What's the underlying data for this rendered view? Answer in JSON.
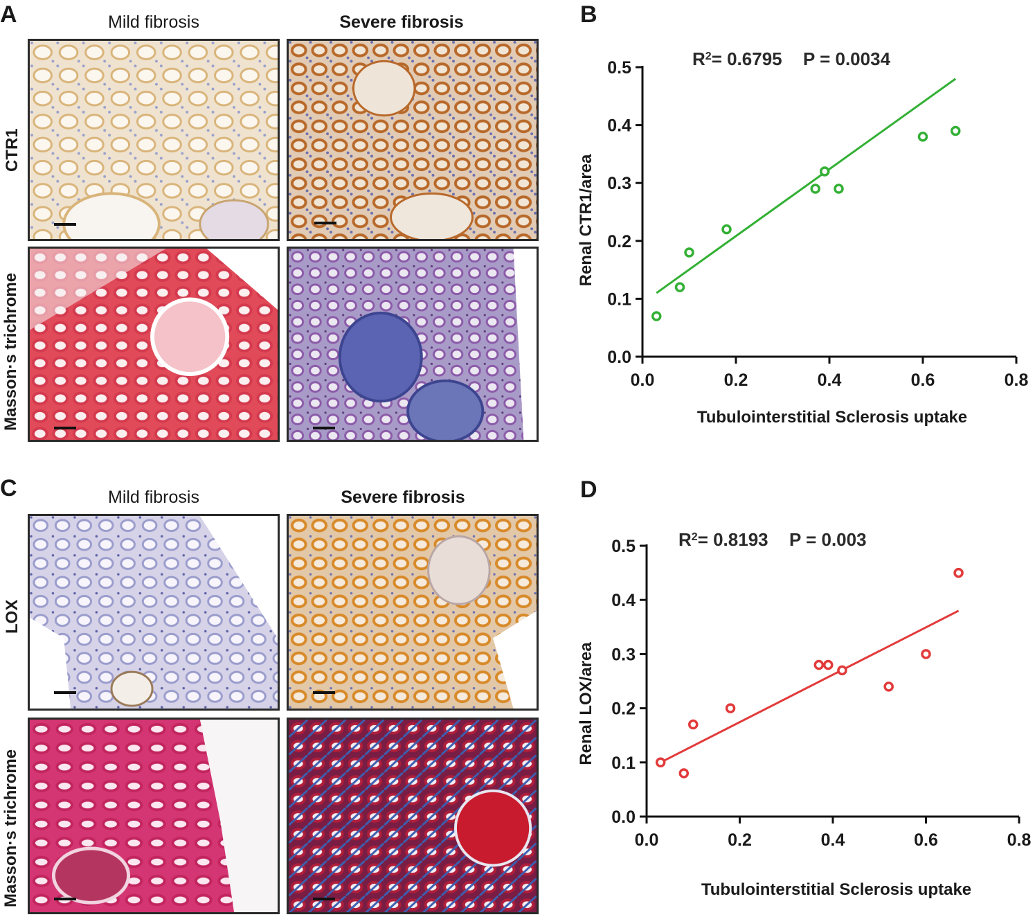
{
  "panels": {
    "A": {
      "letter": "A",
      "col_left": "Mild fibrosis",
      "col_right": "Severe fibrosis",
      "row_top": "CTR1",
      "row_bottom": "Masson·s trichrome"
    },
    "C": {
      "letter": "C",
      "col_left": "Mild fibrosis",
      "col_right": "Severe fibrosis",
      "row_top": "LOX",
      "row_bottom": "Masson·s trichrome"
    },
    "B": {
      "letter": "B"
    },
    "D": {
      "letter": "D"
    }
  },
  "colors": {
    "green_series": "#33b035",
    "red_series": "#e23a3a",
    "ihc_brown": "#c98a3a",
    "ihc_blue": "#8a8fc6",
    "masson_red": "#d6364f",
    "masson_blue": "#4b55a8"
  },
  "chart_data": [
    {
      "panel": "B",
      "type": "scatter",
      "stats": "R² = 0.6795   P = 0.0034",
      "stats_r2": "= 0.6795",
      "stats_p": "P = 0.0034",
      "xlabel": "Tubulointerstitial Sclerosis uptake",
      "ylabel": "Renal CTR1/area",
      "xlim": [
        0.0,
        0.8
      ],
      "ylim": [
        0.0,
        0.5
      ],
      "xticks": [
        "0.0",
        "0.2",
        "0.4",
        "0.6",
        "0.8"
      ],
      "yticks": [
        "0.0",
        "0.1",
        "0.2",
        "0.3",
        "0.4",
        "0.5"
      ],
      "color": "#33b035",
      "points": [
        [
          0.03,
          0.07
        ],
        [
          0.08,
          0.12
        ],
        [
          0.1,
          0.18
        ],
        [
          0.18,
          0.22
        ],
        [
          0.37,
          0.29
        ],
        [
          0.39,
          0.32
        ],
        [
          0.42,
          0.29
        ],
        [
          0.6,
          0.38
        ],
        [
          0.67,
          0.39
        ]
      ],
      "fit_line": [
        [
          0.03,
          0.11
        ],
        [
          0.67,
          0.48
        ]
      ]
    },
    {
      "panel": "D",
      "type": "scatter",
      "stats": "R² = 0.8193   P = 0.003",
      "stats_r2": "= 0.8193",
      "stats_p": "P = 0.003",
      "xlabel": "Tubulointerstitial Sclerosis uptake",
      "ylabel": "Renal LOX/area",
      "xlim": [
        0.0,
        0.8
      ],
      "ylim": [
        0.0,
        0.5
      ],
      "xticks": [
        "0.0",
        "0.2",
        "0.4",
        "0.6",
        "0.8"
      ],
      "yticks": [
        "0.0",
        "0.1",
        "0.2",
        "0.3",
        "0.4",
        "0.5"
      ],
      "color": "#e23a3a",
      "points": [
        [
          0.03,
          0.1
        ],
        [
          0.08,
          0.08
        ],
        [
          0.1,
          0.17
        ],
        [
          0.18,
          0.2
        ],
        [
          0.37,
          0.28
        ],
        [
          0.39,
          0.28
        ],
        [
          0.42,
          0.27
        ],
        [
          0.52,
          0.24
        ],
        [
          0.6,
          0.3
        ],
        [
          0.67,
          0.45
        ]
      ],
      "fit_line": [
        [
          0.03,
          0.1
        ],
        [
          0.67,
          0.38
        ]
      ]
    }
  ]
}
